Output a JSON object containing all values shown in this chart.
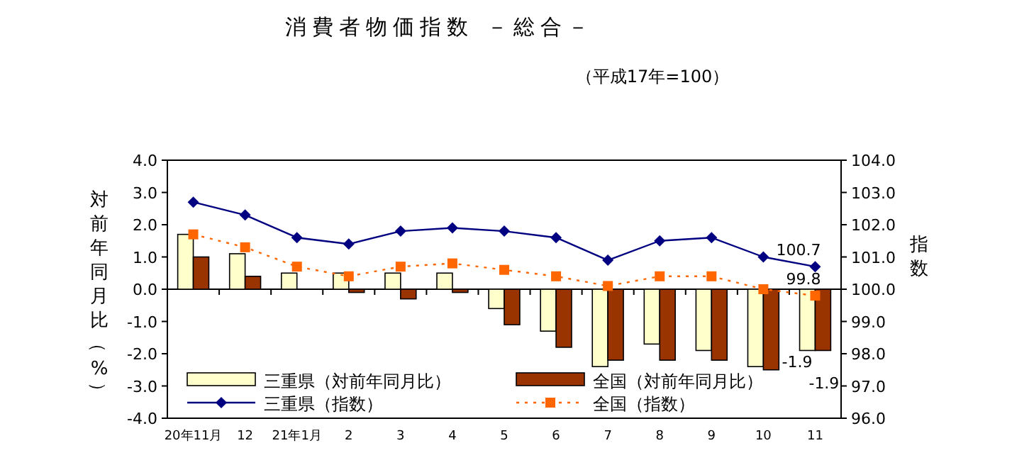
{
  "chart_data": {
    "type": "bar",
    "title": "消費者物価指数 －総合－",
    "subtitle": "（平成17年=100）",
    "ylabel": "対前年同月比（%）",
    "y2label": "指数",
    "categories": [
      "20年11月",
      "12",
      "21年1月",
      "2",
      "3",
      "4",
      "5",
      "6",
      "7",
      "8",
      "9",
      "10",
      "11"
    ],
    "series": [
      {
        "name": "三重県（対前年同月比）",
        "color": "#ffffcc",
        "values": [
          1.7,
          1.1,
          0.5,
          0.5,
          0.5,
          0.5,
          -0.6,
          -1.3,
          -2.4,
          -1.7,
          -1.9,
          -2.4,
          -1.9
        ],
        "value_labels": [
          null,
          null,
          null,
          null,
          null,
          null,
          null,
          null,
          null,
          null,
          null,
          null,
          "-1.9"
        ]
      },
      {
        "name": "全国（対前年同月比）",
        "color": "#993300",
        "values": [
          1.0,
          0.4,
          0.0,
          -0.1,
          -0.3,
          -0.1,
          -1.1,
          -1.8,
          -2.2,
          -2.2,
          -2.2,
          -2.5,
          -1.9
        ],
        "value_labels": [
          null,
          null,
          null,
          null,
          null,
          null,
          null,
          null,
          null,
          null,
          null,
          null,
          "-1.9"
        ]
      },
      {
        "name": "三重県（指数）",
        "type": "line",
        "axis": "y2",
        "color": "#000080",
        "marker": "diamond",
        "line_style": "solid",
        "values": [
          102.7,
          102.3,
          101.6,
          101.4,
          101.8,
          101.9,
          101.8,
          101.6,
          100.9,
          101.5,
          101.6,
          101.0,
          100.7
        ],
        "value_labels": [
          null,
          null,
          null,
          null,
          null,
          null,
          null,
          null,
          null,
          null,
          null,
          null,
          "100.7"
        ]
      },
      {
        "name": "全国（指数）",
        "type": "line",
        "axis": "y2",
        "color": "#ff6600",
        "marker": "square",
        "line_style": "dotted",
        "values": [
          101.7,
          101.3,
          100.7,
          100.4,
          100.7,
          100.8,
          100.6,
          100.4,
          100.1,
          100.4,
          100.4,
          100.0,
          99.8
        ],
        "value_labels": [
          null,
          null,
          null,
          null,
          null,
          null,
          null,
          null,
          null,
          null,
          null,
          null,
          "99.8"
        ]
      }
    ],
    "ylim": [
      -4,
      4
    ],
    "yticks": [
      {
        "value": 4,
        "label": "4.0"
      },
      {
        "value": 3,
        "label": "3.0"
      },
      {
        "value": 2,
        "label": "2.0"
      },
      {
        "value": 1,
        "label": "1.0"
      },
      {
        "value": 0,
        "label": "0.0"
      },
      {
        "value": -1,
        "label": "-1.0"
      },
      {
        "value": -2,
        "label": "-2.0"
      },
      {
        "value": -3,
        "label": "-3.0"
      },
      {
        "value": -4,
        "label": "-4.0"
      }
    ],
    "y2lim": [
      96,
      104
    ],
    "y2ticks": [
      {
        "value": 104,
        "label": "104.0"
      },
      {
        "value": 103,
        "label": "103.0"
      },
      {
        "value": 102,
        "label": "102.0"
      },
      {
        "value": 101,
        "label": "101.0"
      },
      {
        "value": 100,
        "label": "100.0"
      },
      {
        "value": 99,
        "label": "99.0"
      },
      {
        "value": 98,
        "label": "98.0"
      },
      {
        "value": 97,
        "label": "97.0"
      },
      {
        "value": 96,
        "label": "96.0"
      }
    ],
    "legend": "bottom left"
  }
}
